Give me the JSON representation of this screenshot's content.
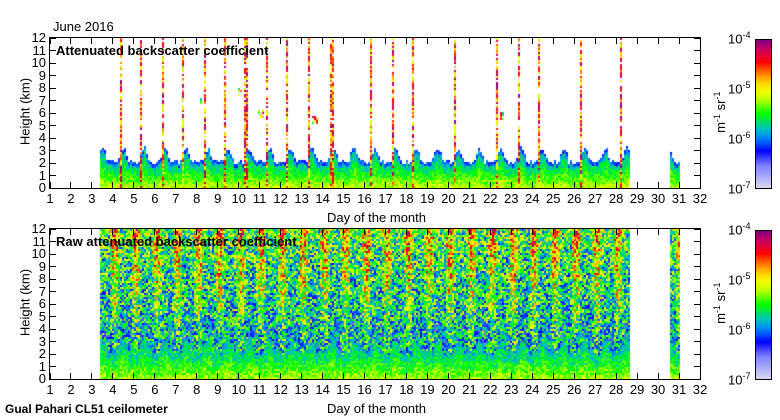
{
  "header": {
    "period": "June 2016"
  },
  "footer": {
    "instrument": "Gual Pahari CL51 ceilometer"
  },
  "chart_data": [
    {
      "type": "heatmap",
      "title": "Attenuated backscatter coefficient",
      "xlabel": "Day of the month",
      "ylabel": "Height (km)",
      "xlim": [
        1,
        32
      ],
      "ylim": [
        0,
        12
      ],
      "xticks": [
        1,
        2,
        3,
        4,
        5,
        6,
        7,
        8,
        9,
        10,
        11,
        12,
        13,
        14,
        15,
        16,
        17,
        18,
        19,
        20,
        21,
        22,
        23,
        24,
        25,
        26,
        27,
        28,
        29,
        30,
        31,
        32
      ],
      "yticks": [
        0,
        1,
        2,
        3,
        4,
        5,
        6,
        7,
        8,
        9,
        10,
        11,
        12
      ],
      "colorbar": {
        "scale": "log",
        "range": [
          1e-07,
          0.0001
        ],
        "ticks": [
          "10",
          "10",
          "10",
          "10"
        ],
        "exponents": [
          "-7",
          "-6",
          "-5",
          "-4"
        ],
        "unit_base": [
          "m",
          "sr"
        ],
        "unit_exp": [
          "-1",
          "-1"
        ]
      },
      "data_periods": [
        [
          3.3,
          28.6
        ],
        [
          30.5,
          31.0
        ]
      ],
      "boundary_layer_top_km": [
        2.0,
        3.5
      ],
      "precip_streak_days": [
        3.3,
        4.3,
        5.3,
        6.3,
        7.3,
        8.3,
        9.3,
        10.3,
        11.3,
        12.3,
        13.3,
        14.4,
        16.3,
        17.3,
        18.3,
        20.3,
        22.3,
        23.3,
        24.3,
        26.3,
        28.2
      ],
      "cloud_layers": [
        {
          "day": 8.1,
          "height_km": 7.2
        },
        {
          "day": 10.0,
          "height_km": 7.8
        },
        {
          "day": 11.0,
          "height_km": 6.0
        },
        {
          "day": 13.6,
          "height_km": 5.5
        },
        {
          "day": 22.5,
          "height_km": 5.8
        }
      ]
    },
    {
      "type": "heatmap",
      "title": "Raw attenuated backscatter coefficient",
      "xlabel": "Day of the month",
      "ylabel": "Height (km)",
      "xlim": [
        1,
        32
      ],
      "ylim": [
        0,
        12
      ],
      "xticks": [
        1,
        2,
        3,
        4,
        5,
        6,
        7,
        8,
        9,
        10,
        11,
        12,
        13,
        14,
        15,
        16,
        17,
        18,
        19,
        20,
        21,
        22,
        23,
        24,
        25,
        26,
        27,
        28,
        29,
        30,
        31,
        32
      ],
      "yticks": [
        0,
        1,
        2,
        3,
        4,
        5,
        6,
        7,
        8,
        9,
        10,
        11,
        12
      ],
      "colorbar": {
        "scale": "log",
        "range": [
          1e-07,
          0.0001
        ],
        "ticks": [
          "10",
          "10",
          "10",
          "10"
        ],
        "exponents": [
          "-7",
          "-6",
          "-5",
          "-4"
        ],
        "unit_base": [
          "m",
          "sr"
        ],
        "unit_exp": [
          "-1",
          "-1"
        ]
      },
      "data_periods": [
        [
          3.3,
          28.6
        ],
        [
          30.5,
          31.0
        ]
      ]
    }
  ],
  "colors": {
    "low": "#d8d8f0",
    "mid": "#00ff00",
    "high": "#800080"
  }
}
